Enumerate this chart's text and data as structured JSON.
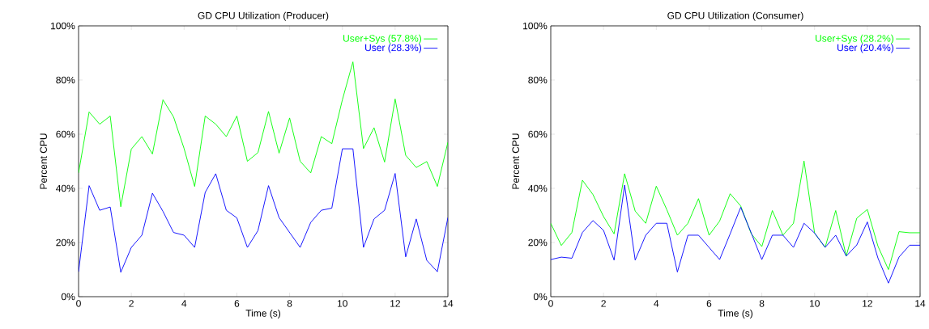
{
  "chart_data": [
    {
      "type": "line",
      "title": "GD CPU Utilization (Producer)",
      "xlabel": "Time (s)",
      "ylabel": "Percent CPU",
      "x": [
        0,
        0.4,
        0.8,
        1.2,
        1.6,
        2.0,
        2.4,
        2.8,
        3.2,
        3.6,
        4.0,
        4.4,
        4.8,
        5.2,
        5.6,
        6.0,
        6.4,
        6.8,
        7.2,
        7.6,
        8.0,
        8.4,
        8.8,
        9.2,
        9.6,
        10.0,
        10.4,
        10.8,
        11.2,
        11.6,
        12.0,
        12.4,
        12.8,
        13.2,
        13.6,
        14.0
      ],
      "series": [
        {
          "name": "User+Sys (57.8%)",
          "color": "#00ff00",
          "values": [
            45.7,
            68.2,
            63.7,
            66.7,
            33.2,
            54.5,
            59.1,
            52.7,
            72.7,
            66.4,
            54.7,
            40.7,
            66.7,
            63.7,
            59.1,
            66.7,
            50,
            53.2,
            68.4,
            53,
            66,
            50,
            45.7,
            59.1,
            56.5,
            72.7,
            86.7,
            54.7,
            62.4,
            49.7,
            73,
            52.2,
            47.7,
            49.9,
            40.7,
            57
          ]
        },
        {
          "name": "User (28.3%)",
          "color": "#0000ff",
          "values": [
            9.2,
            41,
            31.9,
            33.1,
            9,
            18.2,
            22.7,
            38.2,
            31.5,
            23.7,
            22.7,
            18.2,
            38.5,
            45.4,
            31.9,
            29.1,
            18.2,
            24.4,
            41,
            29.2,
            23.7,
            18.2,
            27.4,
            31.9,
            32.7,
            54.6,
            54.6,
            18.2,
            28.7,
            31.9,
            45.5,
            14.7,
            28.7,
            13.4,
            9.2,
            29.2
          ]
        }
      ],
      "xlim": [
        0,
        14
      ],
      "xticks": [
        0,
        2,
        4,
        6,
        8,
        10,
        12,
        14
      ],
      "ylim": [
        0,
        100
      ],
      "yticks": [
        {
          "value": 0,
          "label": "0%"
        },
        {
          "value": 20,
          "label": "20%"
        },
        {
          "value": 40,
          "label": "40%"
        },
        {
          "value": 60,
          "label": "60%"
        },
        {
          "value": 80,
          "label": "80%"
        },
        {
          "value": 100,
          "label": "100%"
        }
      ],
      "legend": "top right",
      "line_style": "solid"
    },
    {
      "type": "line",
      "title": "GD CPU Utilization (Consumer)",
      "xlabel": "Time (s)",
      "ylabel": "Percent CPU",
      "x": [
        0,
        0.4,
        0.8,
        1.2,
        1.6,
        2.0,
        2.4,
        2.8,
        3.2,
        3.6,
        4.0,
        4.4,
        4.8,
        5.2,
        5.6,
        6.0,
        6.4,
        6.8,
        7.2,
        7.6,
        8.0,
        8.4,
        8.8,
        9.2,
        9.6,
        10.0,
        10.4,
        10.8,
        11.2,
        11.6,
        12.0,
        12.4,
        12.8,
        13.2,
        13.6,
        14.0
      ],
      "series": [
        {
          "name": "User+Sys (28.2%)",
          "color": "#00ff00",
          "values": [
            27.1,
            18.9,
            23.7,
            43,
            37.7,
            29.6,
            23.2,
            45.4,
            31.6,
            27.1,
            40.8,
            32.1,
            22.7,
            27.1,
            36.2,
            22.7,
            27.9,
            38,
            33.5,
            23.2,
            18.5,
            31.8,
            22.7,
            27.1,
            50.1,
            23.5,
            18.2,
            31.8,
            15,
            29,
            32.2,
            18.7,
            10,
            24,
            23.6,
            23.6
          ]
        },
        {
          "name": "User (20.4%)",
          "color": "#0000ff",
          "values": [
            13.7,
            14.6,
            14.2,
            23.7,
            28.1,
            24.5,
            13.5,
            41.2,
            13.5,
            22.7,
            27.1,
            27.1,
            9.1,
            22.7,
            22.7,
            18.2,
            13.7,
            23.2,
            33,
            23.5,
            13.7,
            22.7,
            22.7,
            18.2,
            27.1,
            23.5,
            18.2,
            22.7,
            15,
            19.1,
            27.6,
            14.3,
            5,
            14.6,
            19,
            19
          ]
        }
      ],
      "xlim": [
        0,
        14
      ],
      "xticks": [
        0,
        2,
        4,
        6,
        8,
        10,
        12,
        14
      ],
      "ylim": [
        0,
        100
      ],
      "yticks": [
        {
          "value": 0,
          "label": "0%"
        },
        {
          "value": 20,
          "label": "20%"
        },
        {
          "value": 40,
          "label": "40%"
        },
        {
          "value": 60,
          "label": "60%"
        },
        {
          "value": 80,
          "label": "80%"
        },
        {
          "value": 100,
          "label": "100%"
        }
      ],
      "legend": "top right",
      "line_style": "solid"
    }
  ]
}
